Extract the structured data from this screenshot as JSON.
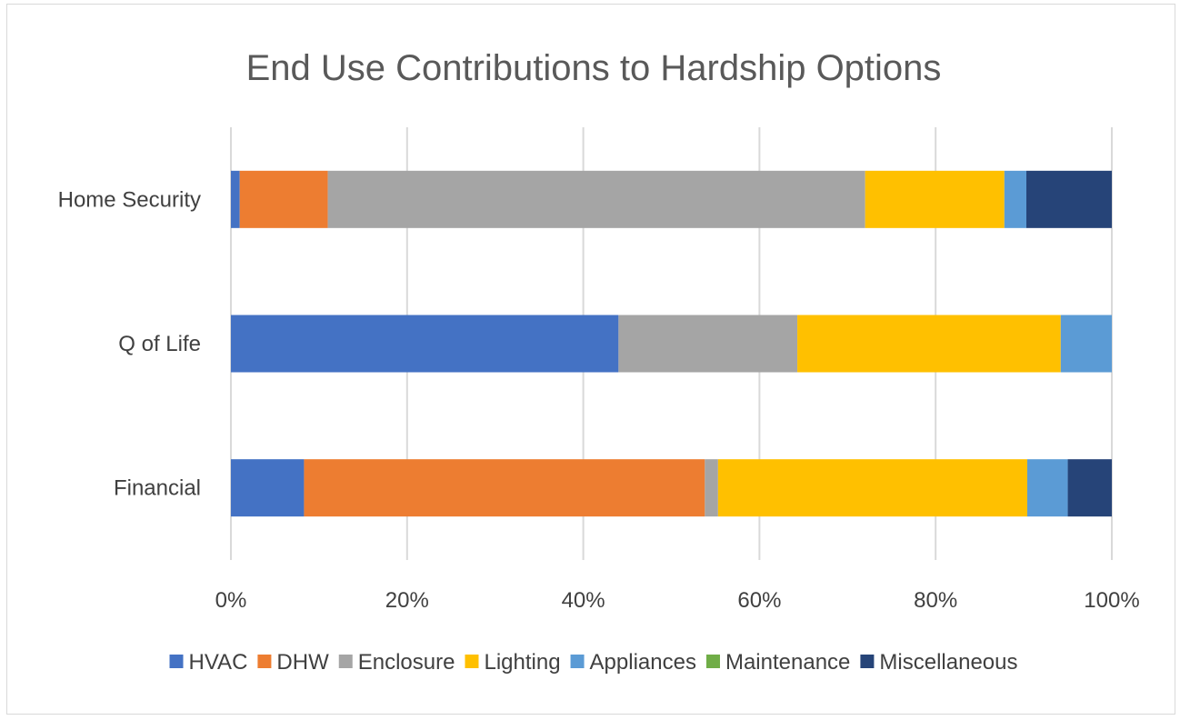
{
  "chart_data": {
    "type": "bar",
    "orientation": "horizontal",
    "stacked": "percent",
    "title": "End Use Contributions to Hardship Options",
    "categories": [
      "Home Security",
      "Q of Life",
      "Financial"
    ],
    "xticks": [
      "0%",
      "20%",
      "40%",
      "60%",
      "80%",
      "100%"
    ],
    "xlim": [
      0,
      100
    ],
    "grid": true,
    "legend_position": "bottom",
    "series": [
      {
        "name": "HVAC",
        "color": "#4472C4",
        "values": [
          1,
          44,
          8.3
        ]
      },
      {
        "name": "DHW",
        "color": "#ED7D31",
        "values": [
          10,
          0,
          45.5
        ]
      },
      {
        "name": "Enclosure",
        "color": "#A5A5A5",
        "values": [
          61,
          20.3,
          1.5
        ]
      },
      {
        "name": "Lighting",
        "color": "#FFC000",
        "values": [
          15.8,
          29.9,
          35.1
        ]
      },
      {
        "name": "Appliances",
        "color": "#5B9BD5",
        "values": [
          2.5,
          5.8,
          4.6
        ]
      },
      {
        "name": "Maintenance",
        "color": "#70AD47",
        "values": [
          0,
          0,
          0
        ]
      },
      {
        "name": "Miscellaneous",
        "color": "#264478",
        "values": [
          9.7,
          0,
          5
        ]
      }
    ]
  }
}
